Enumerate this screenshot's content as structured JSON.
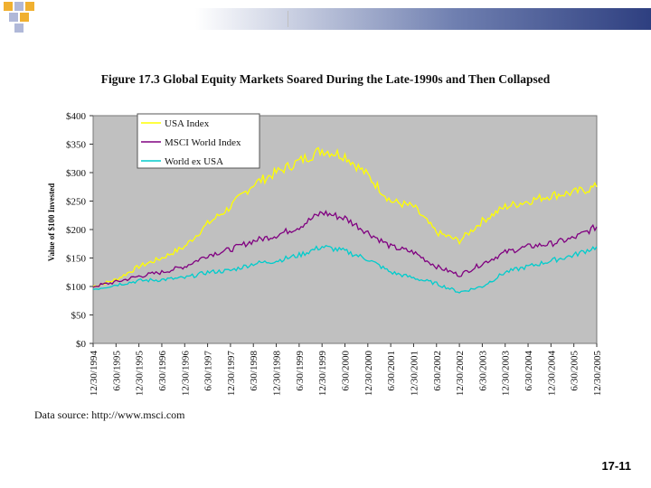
{
  "slide_number": "17-11",
  "source_text": "Data source: http://www.msci.com",
  "chart_data": {
    "type": "line",
    "title": "Figure 17.3 Global Equity Markets Soared During the Late-1990s and Then Collapsed",
    "ylabel": "Value of $100 Invested",
    "xlabel": "",
    "ylim": [
      0,
      400
    ],
    "yticks": [
      "$0",
      "$50",
      "$100",
      "$150",
      "$200",
      "$250",
      "$300",
      "$350",
      "$400"
    ],
    "grid": false,
    "legend_position": "top-left",
    "background_color": "#c0c0c0",
    "x": [
      "12/30/1994",
      "6/30/1995",
      "12/30/1995",
      "6/30/1996",
      "12/30/1996",
      "6/30/1997",
      "12/30/1997",
      "6/30/1998",
      "12/30/1998",
      "6/30/1999",
      "12/30/1999",
      "6/30/2000",
      "12/30/2000",
      "6/30/2001",
      "12/30/2001",
      "6/30/2002",
      "12/30/2002",
      "6/30/2003",
      "12/30/2003",
      "6/30/2004",
      "12/30/2004",
      "6/30/2005",
      "12/30/2005"
    ],
    "series": [
      {
        "name": "USA Index",
        "color": "#ffff00",
        "values": [
          100,
          112,
          135,
          150,
          170,
          210,
          240,
          280,
          300,
          320,
          340,
          330,
          295,
          250,
          240,
          195,
          180,
          215,
          240,
          250,
          260,
          265,
          275
        ]
      },
      {
        "name": "MSCI World Index",
        "color": "#800080",
        "values": [
          100,
          108,
          118,
          125,
          135,
          155,
          165,
          180,
          190,
          205,
          230,
          220,
          195,
          170,
          160,
          135,
          120,
          140,
          160,
          170,
          175,
          185,
          205
        ]
      },
      {
        "name": "World ex USA",
        "color": "#00cccc",
        "values": [
          95,
          103,
          110,
          112,
          115,
          125,
          128,
          140,
          145,
          155,
          170,
          162,
          148,
          125,
          115,
          105,
          90,
          100,
          125,
          135,
          145,
          155,
          170
        ]
      }
    ]
  }
}
